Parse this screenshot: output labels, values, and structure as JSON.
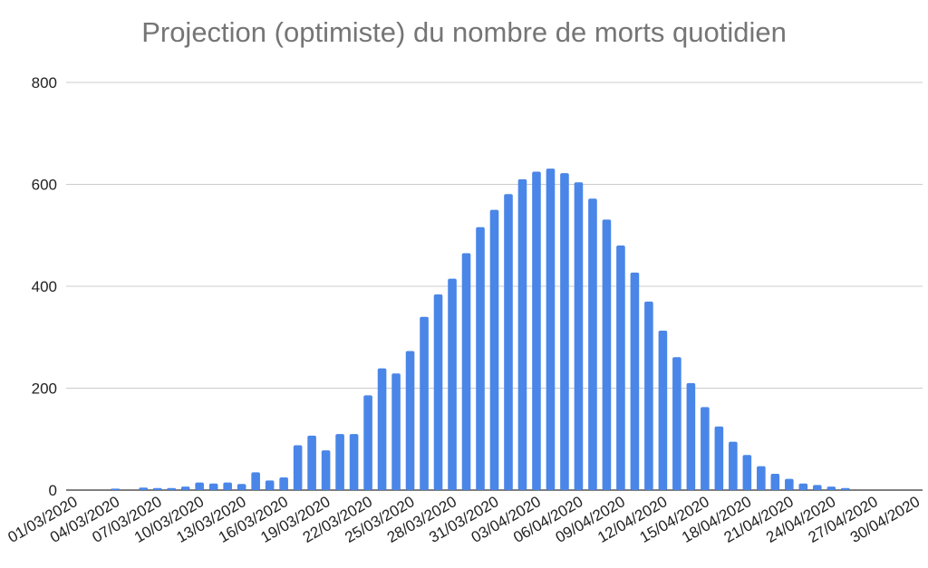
{
  "chart_data": {
    "type": "bar",
    "title": "Projection (optimiste) du nombre de morts quotidien",
    "xlabel": "",
    "ylabel": "",
    "ylim": [
      0,
      800
    ],
    "y_ticks": [
      0,
      200,
      400,
      600,
      800
    ],
    "grid": true,
    "legend": "none",
    "bar_color": "#4a86e8",
    "categories": [
      "01/03/2020",
      "02/03/2020",
      "03/03/2020",
      "04/03/2020",
      "05/03/2020",
      "06/03/2020",
      "07/03/2020",
      "08/03/2020",
      "09/03/2020",
      "10/03/2020",
      "11/03/2020",
      "12/03/2020",
      "13/03/2020",
      "14/03/2020",
      "15/03/2020",
      "16/03/2020",
      "17/03/2020",
      "18/03/2020",
      "19/03/2020",
      "20/03/2020",
      "21/03/2020",
      "22/03/2020",
      "23/03/2020",
      "24/03/2020",
      "25/03/2020",
      "26/03/2020",
      "27/03/2020",
      "28/03/2020",
      "29/03/2020",
      "30/03/2020",
      "31/03/2020",
      "01/04/2020",
      "02/04/2020",
      "03/04/2020",
      "04/04/2020",
      "05/04/2020",
      "06/04/2020",
      "07/04/2020",
      "08/04/2020",
      "09/04/2020",
      "10/04/2020",
      "11/04/2020",
      "12/04/2020",
      "13/04/2020",
      "14/04/2020",
      "15/04/2020",
      "16/04/2020",
      "17/04/2020",
      "18/04/2020",
      "19/04/2020",
      "20/04/2020",
      "21/04/2020",
      "22/04/2020",
      "23/04/2020",
      "24/04/2020",
      "25/04/2020",
      "26/04/2020",
      "27/04/2020",
      "28/04/2020",
      "29/04/2020",
      "30/04/2020"
    ],
    "x_tick_labels": [
      "01/03/2020",
      "04/03/2020",
      "07/03/2020",
      "10/03/2020",
      "13/03/2020",
      "16/03/2020",
      "19/03/2020",
      "22/03/2020",
      "25/03/2020",
      "28/03/2020",
      "31/03/2020",
      "03/04/2020",
      "06/04/2020",
      "09/04/2020",
      "12/04/2020",
      "15/04/2020",
      "18/04/2020",
      "21/04/2020",
      "24/04/2020",
      "27/04/2020",
      "30/04/2020"
    ],
    "values": [
      0,
      0,
      0,
      3,
      0,
      5,
      4,
      4,
      7,
      15,
      13,
      15,
      12,
      35,
      19,
      25,
      88,
      107,
      78,
      110,
      110,
      186,
      239,
      229,
      273,
      340,
      384,
      415,
      465,
      516,
      550,
      581,
      610,
      625,
      631,
      622,
      604,
      572,
      531,
      480,
      427,
      370,
      313,
      261,
      210,
      163,
      125,
      95,
      69,
      47,
      32,
      22,
      13,
      10,
      7,
      4,
      0,
      0,
      0,
      0,
      0
    ]
  }
}
